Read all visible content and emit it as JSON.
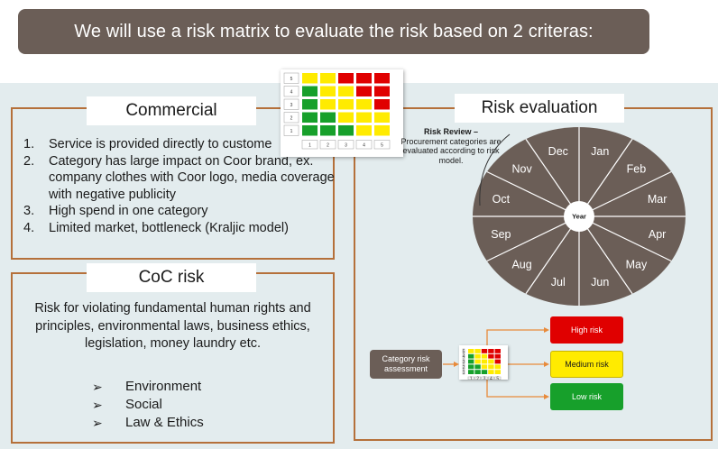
{
  "banner": {
    "title": "We will use a risk matrix to evaluate the risk based on 2 criteras:"
  },
  "commercial": {
    "title": "Commercial",
    "items": [
      {
        "num": "1.",
        "text": "Service is provided directly to custome"
      },
      {
        "num": "2.",
        "text": "Category has large impact on Coor brand, ex. company clothes with Coor logo, media coverage with negative publicity"
      },
      {
        "num": "3.",
        "text": "High spend in one category"
      },
      {
        "num": "4.",
        "text": "Limited market, bottleneck (Kraljic model)"
      }
    ]
  },
  "coc": {
    "title": "CoC risk",
    "description": "Risk for violating fundamental human rights and principles, environmental laws, business ethics, legislation, money laundry etc.",
    "bullets": [
      {
        "bullet": "➢",
        "text": "Environment"
      },
      {
        "bullet": "➢",
        "text": "Social"
      },
      {
        "bullet": "➢",
        "text": "Law & Ethics"
      }
    ]
  },
  "evaluation": {
    "title": "Risk evaluation",
    "risk_review_head": "Risk Review –",
    "risk_review_text": "Procurement categories are evaluated according to risk model.",
    "wheel_center": "Year",
    "months": [
      "Jan",
      "Feb",
      "Mar",
      "Apr",
      "May",
      "Jun",
      "Jul",
      "Aug",
      "Sep",
      "Oct",
      "Nov",
      "Dec"
    ],
    "wheel_color": "#6b5e57",
    "category_box": "Category risk assessment",
    "high_risk": "High risk",
    "medium_risk": "Medium risk",
    "low_risk": "Low risk"
  },
  "matrix": {
    "row_labels": [
      "5",
      "4",
      "3",
      "2",
      "1"
    ],
    "col_labels": [
      "1",
      "2",
      "3",
      "4",
      "5"
    ],
    "colors": {
      "red": "#e00000",
      "yellow": "#ffeb00",
      "green": "#17a02b",
      "connector": "#e88a3a"
    },
    "grid": [
      [
        "yellow",
        "yellow",
        "red",
        "red",
        "red"
      ],
      [
        "green",
        "yellow",
        "yellow",
        "red",
        "red"
      ],
      [
        "green",
        "yellow",
        "yellow",
        "yellow",
        "red"
      ],
      [
        "green",
        "green",
        "yellow",
        "yellow",
        "yellow"
      ],
      [
        "green",
        "green",
        "green",
        "yellow",
        "yellow"
      ]
    ]
  }
}
